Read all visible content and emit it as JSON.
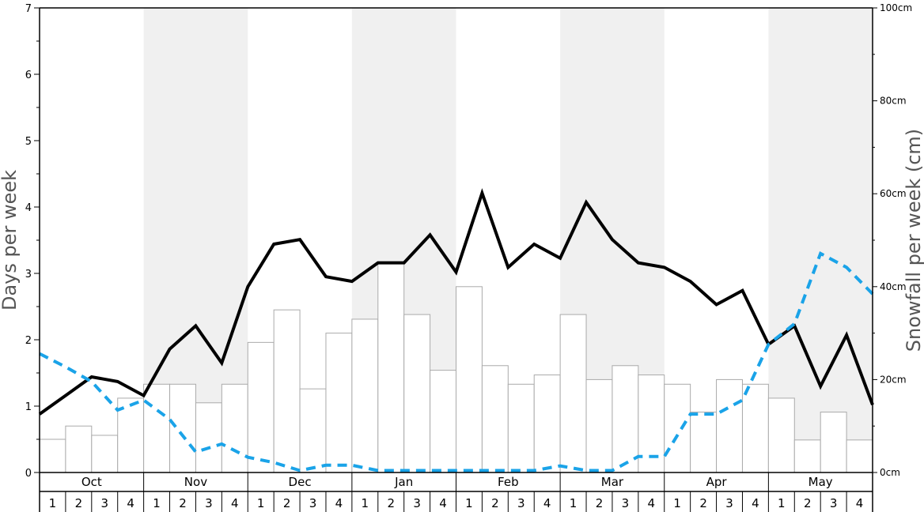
{
  "chart_data": {
    "type": "bar",
    "months": [
      {
        "label": "Oct",
        "shaded": false
      },
      {
        "label": "Nov",
        "shaded": true
      },
      {
        "label": "Dec",
        "shaded": false
      },
      {
        "label": "Jan",
        "shaded": true
      },
      {
        "label": "Feb",
        "shaded": false
      },
      {
        "label": "Mar",
        "shaded": true
      },
      {
        "label": "Apr",
        "shaded": false
      },
      {
        "label": "May",
        "shaded": true
      }
    ],
    "weeks": [
      "1",
      "2",
      "3",
      "4"
    ],
    "ylabel_left": "Days per week",
    "ylabel_right": "Snowfall per week (cm)",
    "ylim_left": [
      0,
      7
    ],
    "ylim_right": [
      0,
      100
    ],
    "left_ticks": [
      "0",
      "1",
      "2",
      "3",
      "4",
      "5",
      "6",
      "7"
    ],
    "right_ticks": [
      {
        "value": 0,
        "label": "0cm"
      },
      {
        "value": 20,
        "label": "20cm"
      },
      {
        "value": 40,
        "label": "40cm"
      },
      {
        "value": 60,
        "label": "60cm"
      },
      {
        "value": 80,
        "label": "80cm"
      },
      {
        "value": 100,
        "label": "100cm"
      }
    ],
    "bars": {
      "axis": "left",
      "values": [
        0.5,
        0.7,
        0.56,
        1.12,
        1.33,
        1.33,
        1.05,
        1.33,
        1.96,
        2.45,
        1.26,
        2.1,
        2.31,
        3.15,
        2.38,
        1.54,
        2.8,
        1.61,
        1.33,
        1.47,
        2.38,
        1.4,
        1.61,
        1.47,
        1.33,
        0.91,
        1.4,
        1.33,
        1.12,
        0.49,
        0.91,
        0.49
      ]
    },
    "series": [
      {
        "style": "solid",
        "color": "#000000",
        "axis": "left",
        "values": [
          0.88,
          1.16,
          1.44,
          1.37,
          1.16,
          1.86,
          2.21,
          1.65,
          2.8,
          3.44,
          3.51,
          2.95,
          2.88,
          3.16,
          3.16,
          3.58,
          3.02,
          4.21,
          3.09,
          3.44,
          3.23,
          4.07,
          3.51,
          3.16,
          3.09,
          2.88,
          2.53,
          2.74,
          1.93,
          2.21,
          1.3,
          2.07,
          1.02
        ]
      },
      {
        "style": "dashed",
        "color": "#1aa3e8",
        "axis": "left",
        "values": [
          1.79,
          1.59,
          1.37,
          0.94,
          1.09,
          0.8,
          0.31,
          0.43,
          0.23,
          0.15,
          0.03,
          0.11,
          0.11,
          0.03,
          0.03,
          0.03,
          0.03,
          0.03,
          0.03,
          0.03,
          0.1,
          0.03,
          0.03,
          0.24,
          0.24,
          0.88,
          0.88,
          1.09,
          1.93,
          2.24,
          3.3,
          3.09,
          2.69
        ]
      }
    ],
    "colors": {
      "bar_fill": "#ffffff",
      "bar_stroke": "#aaaaaa",
      "shade": "#f0f0f0",
      "axis": "#000000",
      "separator": "#bbbbbb"
    },
    "grid": false
  }
}
